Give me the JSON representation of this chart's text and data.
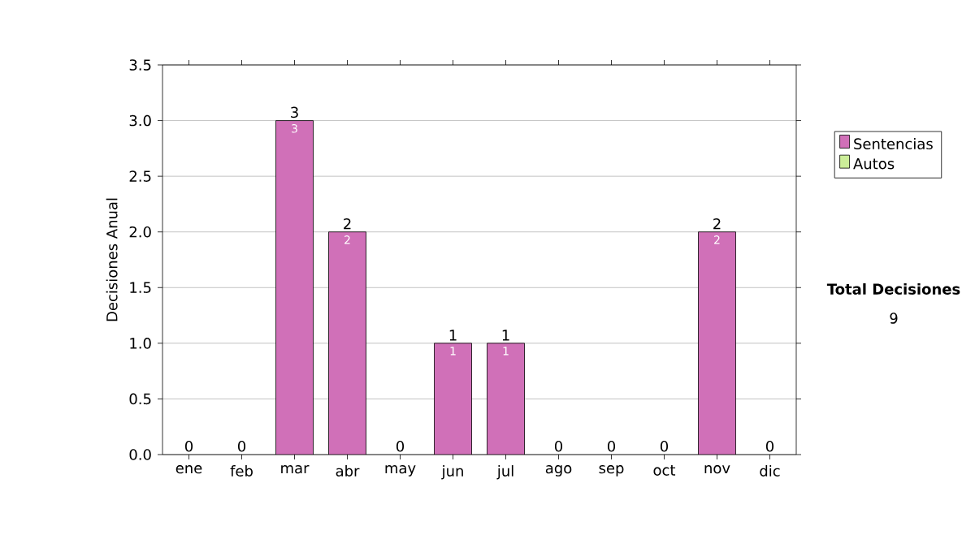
{
  "chart_data": {
    "type": "bar",
    "stacked": true,
    "ylabel": "Decisiones Anual",
    "categories": [
      "ene",
      "feb",
      "mar",
      "abr",
      "may",
      "jun",
      "jul",
      "ago",
      "sep",
      "oct",
      "nov",
      "dic"
    ],
    "series": [
      {
        "name": "Sentencias",
        "color": "#d070b8",
        "values": [
          0,
          0,
          3,
          2,
          0,
          1,
          1,
          0,
          0,
          0,
          2,
          0
        ],
        "value_labels": [
          null,
          null,
          "3",
          "2",
          null,
          "1",
          "1",
          null,
          null,
          null,
          "2",
          null
        ]
      },
      {
        "name": "Autos",
        "color": "#ccee99",
        "values": [
          0,
          0,
          0,
          0,
          0,
          0,
          0,
          0,
          0,
          0,
          0,
          0
        ]
      }
    ],
    "totals": [
      "0",
      "0",
      "3",
      "2",
      "0",
      "1",
      "1",
      "0",
      "0",
      "0",
      "2",
      "0"
    ],
    "ylim": [
      0,
      3.5
    ],
    "yticks": [
      {
        "value": 0,
        "label": "0.0"
      },
      {
        "value": 0.5,
        "label": "0.5"
      },
      {
        "value": 1,
        "label": "1.0"
      },
      {
        "value": 1.5,
        "label": "1.5"
      },
      {
        "value": 2,
        "label": "2.0"
      },
      {
        "value": 2.5,
        "label": "2.5"
      },
      {
        "value": 3,
        "label": "3.0"
      },
      {
        "value": 3.5,
        "label": "3.5"
      }
    ],
    "grid": "y",
    "legend": "right",
    "annotations": [
      "Total Decisiones",
      "9"
    ]
  }
}
